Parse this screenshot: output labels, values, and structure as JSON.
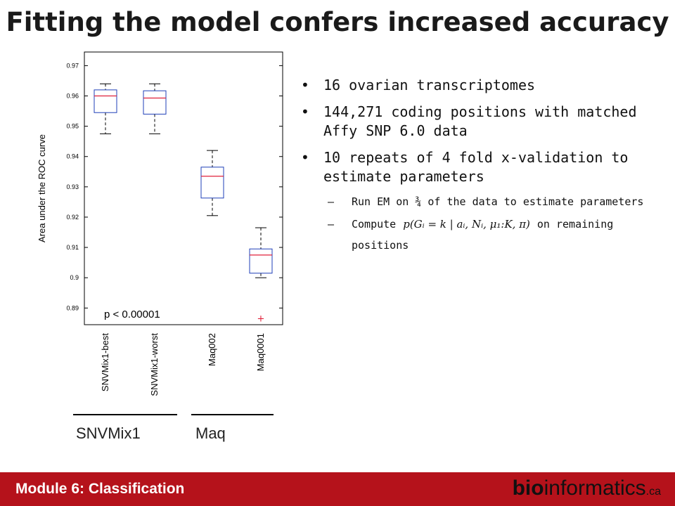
{
  "slide": {
    "title": "Fitting the model confers increased accuracy",
    "footer_label": "Module 6: Classification",
    "logo": {
      "bio": "bio",
      "informatics": "informatics",
      "ca": ".ca"
    }
  },
  "bullets": [
    "16 ovarian transcriptomes",
    "144,271 coding positions with matched Affy SNP 6.0 data",
    "10 repeats of 4 fold x-validation to estimate parameters"
  ],
  "sub_bullets": {
    "first": "Run EM on ¾ of the data to estimate parameters",
    "compute_prefix": "Compute",
    "formula": "p(Gᵢ = k | aᵢ, Nᵢ, μ₁:K, π)",
    "compute_suffix": "on remaining positions"
  },
  "chart_data": {
    "type": "box",
    "ylabel": "Area under the ROC curve",
    "yticks": [
      "0.97",
      "0.96",
      "0.95",
      "0.94",
      "0.93",
      "0.92",
      "0.91",
      "0.9",
      "0.89"
    ],
    "ylim": [
      0.8845,
      0.9745
    ],
    "annotation": "p < 0.00001",
    "categories": [
      "SNVMix1-best",
      "SNVMix1-worst",
      "Maq002",
      "Maq0001"
    ],
    "boxes": [
      {
        "name": "SNVMix1-best",
        "whisker_low": 0.9475,
        "q1": 0.9545,
        "median": 0.96,
        "q3": 0.962,
        "whisker_high": 0.964
      },
      {
        "name": "SNVMix1-worst",
        "whisker_low": 0.9475,
        "q1": 0.954,
        "median": 0.9593,
        "q3": 0.9617,
        "whisker_high": 0.964
      },
      {
        "name": "Maq002",
        "whisker_low": 0.9205,
        "q1": 0.9263,
        "median": 0.9335,
        "q3": 0.9365,
        "whisker_high": 0.942
      },
      {
        "name": "Maq0001",
        "whisker_low": 0.9,
        "q1": 0.9015,
        "median": 0.9075,
        "q3": 0.9095,
        "whisker_high": 0.9165,
        "outliers": [
          0.8865
        ]
      }
    ],
    "groups": [
      {
        "label": "SNVMix1",
        "members": [
          "SNVMix1-best",
          "SNVMix1-worst"
        ]
      },
      {
        "label": "Maq",
        "members": [
          "Maq002",
          "Maq0001"
        ]
      }
    ],
    "colors": {
      "box": "#1f3fb8",
      "median": "#e0203a",
      "whisker": "#000000",
      "outlier": "#e0203a"
    }
  }
}
